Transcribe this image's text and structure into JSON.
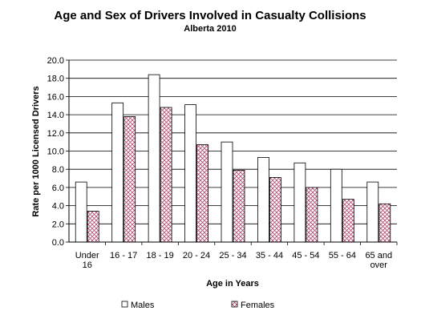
{
  "chart_data": {
    "type": "bar",
    "title": "Age and Sex of Drivers Involved in Casualty Collisions",
    "subtitle": "Alberta 2010",
    "xlabel": "Age in Years",
    "ylabel": "Rate per 1000 Licensed Drivers",
    "ylim": [
      0,
      20
    ],
    "yticks": [
      "0.0",
      "2.0",
      "4.0",
      "6.0",
      "8.0",
      "10.0",
      "12.0",
      "14.0",
      "16.0",
      "18.0",
      "20.0"
    ],
    "grid": "horizontal",
    "legend_position": "bottom",
    "categories": [
      [
        "Under",
        "16"
      ],
      [
        "16 - 17"
      ],
      [
        "18 - 19"
      ],
      [
        "20 - 24"
      ],
      [
        "25 - 34"
      ],
      [
        "35 - 44"
      ],
      [
        "45 - 54"
      ],
      [
        "55 - 64"
      ],
      [
        "65 and",
        "over"
      ]
    ],
    "series": [
      {
        "name": "Males",
        "values": [
          6.6,
          15.3,
          18.4,
          15.1,
          11.0,
          9.3,
          8.7,
          8.0,
          6.6
        ],
        "fill": "#ffffff",
        "pattern": "none"
      },
      {
        "name": "Females",
        "values": [
          3.4,
          13.8,
          14.8,
          10.7,
          7.9,
          7.1,
          6.0,
          4.7,
          4.2
        ],
        "fill": "#ffffff",
        "pattern": "crosshatch",
        "pattern_color": "#b04a74"
      }
    ]
  }
}
